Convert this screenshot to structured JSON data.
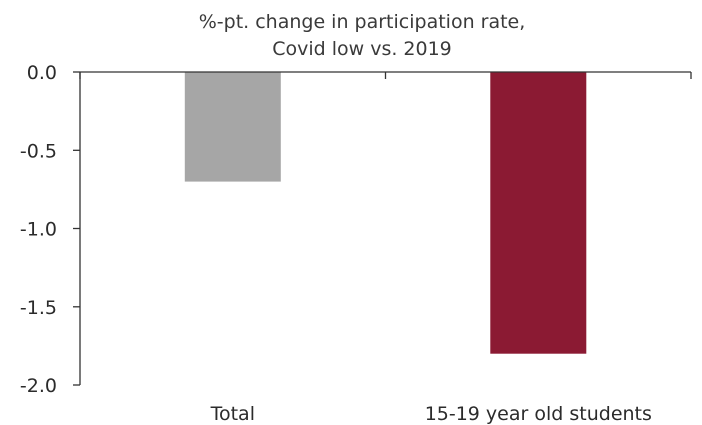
{
  "chart_data": {
    "type": "bar",
    "title": [
      "%-pt. change in participation rate,",
      "Covid low vs. 2019"
    ],
    "xlabel": "",
    "ylabel": "",
    "categories": [
      "Total",
      "15-19 year old students"
    ],
    "values": [
      -0.7,
      -1.8
    ],
    "colors": [
      "#a6a6a6",
      "#8b1a33"
    ],
    "ylim": [
      -2.0,
      0.0
    ],
    "yticks": [
      0.0,
      -0.5,
      -1.0,
      -1.5,
      -2.0
    ],
    "ytick_labels": [
      "0.0",
      "-0.5",
      "-1.0",
      "-1.5",
      "-2.0"
    ],
    "grid": false,
    "legend": "none"
  }
}
